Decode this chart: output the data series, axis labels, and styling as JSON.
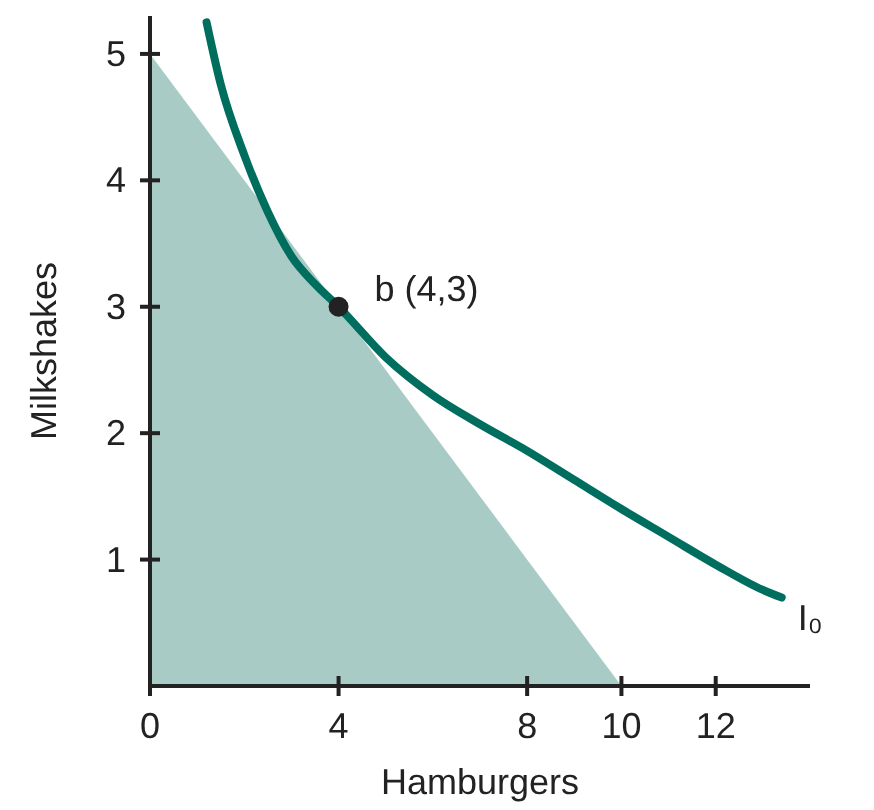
{
  "chart_data": {
    "type": "line",
    "xlabel": "Hamburgers",
    "ylabel": "Milkshakes",
    "xlim": [
      0,
      14
    ],
    "ylim": [
      0,
      5.3
    ],
    "xticks": [
      0,
      4,
      8,
      10,
      12
    ],
    "yticks": [
      1,
      2,
      3,
      4,
      5
    ],
    "grid": false,
    "legend": false,
    "annotations": [
      {
        "text": "b (4,3)",
        "x": 4,
        "y": 3
      }
    ],
    "series": [
      {
        "type": "area",
        "color": "#a9cbc6",
        "x": [
          0,
          10
        ],
        "values": [
          5,
          0
        ]
      },
      {
        "type": "line",
        "name": "I₀",
        "color": "#006e5f",
        "x": [
          1.2,
          1.5,
          2,
          2.5,
          3,
          3.5,
          4,
          5,
          6,
          7,
          8,
          9,
          10,
          11,
          12,
          13,
          13.4
        ],
        "values": [
          5.25,
          4.76,
          4.2,
          3.75,
          3.4,
          3.18,
          3,
          2.6,
          2.3,
          2.07,
          1.86,
          1.63,
          1.4,
          1.18,
          0.96,
          0.76,
          0.7
        ]
      },
      {
        "type": "scatter",
        "color": "#222222",
        "x": [
          4
        ],
        "values": [
          3
        ]
      }
    ]
  }
}
